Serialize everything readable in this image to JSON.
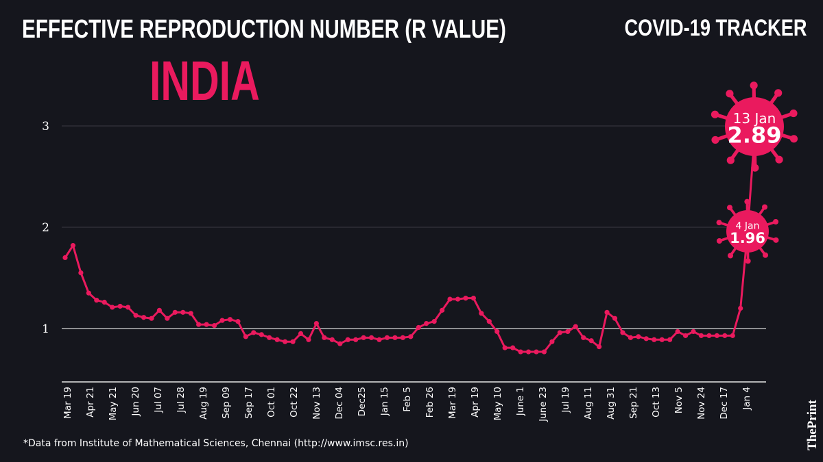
{
  "header": {
    "title": "EFFECTIVE REPRODUCTION NUMBER (R VALUE)",
    "tracker": "COVID-19 TRACKER",
    "country": "INDIA"
  },
  "footer": {
    "source": "*Data from Institute of Mathematical Sciences, Chennai (http://www.imsc.res.in)",
    "logo": "ThePrint"
  },
  "colors": {
    "line": "#ea1a5e",
    "background": "#15161d"
  },
  "chart_data": {
    "type": "line",
    "title": "EFFECTIVE REPRODUCTION NUMBER (R VALUE)",
    "xlabel": "",
    "ylabel": "",
    "ylim": [
      0.47,
      3.45
    ],
    "yticks": [
      1,
      2,
      3
    ],
    "grid": true,
    "xtick_labels": [
      "Mar 19",
      "Apr 21",
      "May 21",
      "Jun 20",
      "Jul 07",
      "Jul 28",
      "Aug 19",
      "Sep 09",
      "Sep 17",
      "Oct 01",
      "Oct 22",
      "Nov 13",
      "Dec 04",
      "Dec25",
      "Jan 15",
      "Feb 5",
      "Feb 26",
      "Mar 19",
      "Apr 19",
      "May 10",
      "June 1",
      "June 23",
      "Jul 19",
      "Aug 11",
      "Aug 31",
      "Sep 21",
      "Oct 13",
      "Nov 5",
      "Nov 24",
      "Dec 17",
      "Jan 4"
    ],
    "values": [
      1.7,
      1.82,
      1.55,
      1.35,
      1.28,
      1.26,
      1.21,
      1.22,
      1.21,
      1.13,
      1.11,
      1.1,
      1.18,
      1.1,
      1.16,
      1.16,
      1.15,
      1.04,
      1.04,
      1.03,
      1.08,
      1.09,
      1.07,
      0.92,
      0.96,
      0.94,
      0.91,
      0.89,
      0.87,
      0.87,
      0.95,
      0.89,
      1.05,
      0.91,
      0.89,
      0.85,
      0.89,
      0.89,
      0.91,
      0.91,
      0.89,
      0.91,
      0.91,
      0.91,
      0.92,
      1.01,
      1.05,
      1.07,
      1.18,
      1.29,
      1.29,
      1.3,
      1.3,
      1.15,
      1.07,
      0.97,
      0.81,
      0.81,
      0.77,
      0.77,
      0.77,
      0.77,
      0.87,
      0.96,
      0.97,
      1.02,
      0.91,
      0.88,
      0.82,
      1.16,
      1.1,
      0.96,
      0.91,
      0.92,
      0.9,
      0.89,
      0.89,
      0.89,
      0.97,
      0.93,
      0.97,
      0.93,
      0.93,
      0.93,
      0.93,
      0.93,
      1.2,
      1.96,
      2.89
    ],
    "annotations": [
      {
        "date": "4 Jan",
        "value": "1.96"
      },
      {
        "date": "13 Jan",
        "value": "2.89"
      }
    ]
  }
}
